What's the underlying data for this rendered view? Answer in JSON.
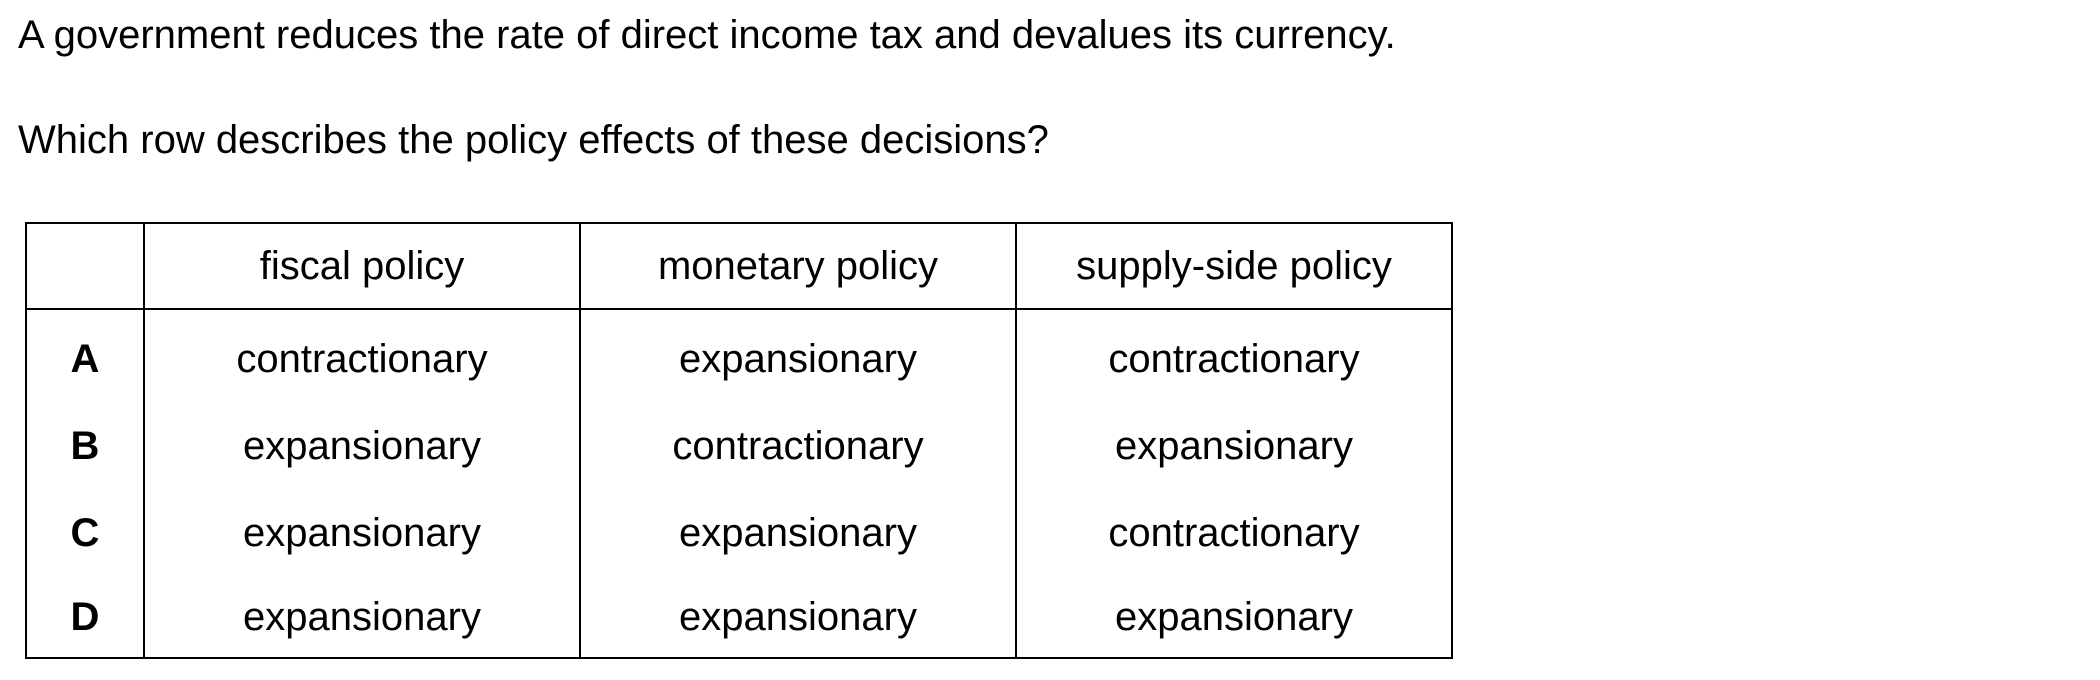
{
  "question": {
    "stem": "A government reduces the rate of direct income tax and devalues its currency.",
    "prompt": "Which row describes the policy effects of these decisions?"
  },
  "table": {
    "headers": [
      "",
      "fiscal policy",
      "monetary policy",
      "supply-side policy"
    ],
    "rows": [
      {
        "letter": "A",
        "fiscal": "contractionary",
        "monetary": "expansionary",
        "supply_side": "contractionary"
      },
      {
        "letter": "B",
        "fiscal": "expansionary",
        "monetary": "contractionary",
        "supply_side": "expansionary"
      },
      {
        "letter": "C",
        "fiscal": "expansionary",
        "monetary": "expansionary",
        "supply_side": "contractionary"
      },
      {
        "letter": "D",
        "fiscal": "expansionary",
        "monetary": "expansionary",
        "supply_side": "expansionary"
      }
    ]
  }
}
